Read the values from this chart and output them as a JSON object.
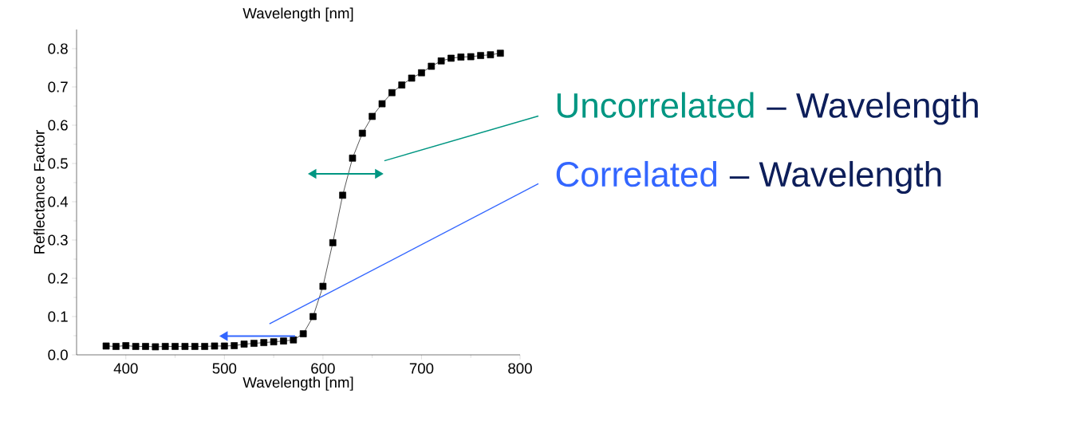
{
  "chart_data": {
    "type": "line",
    "title": "Wavelength [nm]",
    "xlabel": "Wavelength [nm]",
    "ylabel": "Reflectance Factor",
    "x": [
      380,
      390,
      400,
      410,
      420,
      430,
      440,
      450,
      460,
      470,
      480,
      490,
      500,
      510,
      520,
      530,
      540,
      550,
      560,
      570,
      580,
      590,
      600,
      610,
      620,
      630,
      640,
      650,
      660,
      670,
      680,
      690,
      700,
      710,
      720,
      730,
      740,
      750,
      760,
      770,
      780
    ],
    "values": [
      0.023,
      0.022,
      0.024,
      0.022,
      0.022,
      0.021,
      0.022,
      0.022,
      0.022,
      0.022,
      0.022,
      0.023,
      0.023,
      0.024,
      0.028,
      0.03,
      0.032,
      0.034,
      0.036,
      0.039,
      0.055,
      0.1,
      0.179,
      0.293,
      0.417,
      0.514,
      0.579,
      0.623,
      0.656,
      0.685,
      0.705,
      0.723,
      0.737,
      0.754,
      0.768,
      0.775,
      0.778,
      0.779,
      0.782,
      0.784,
      0.788
    ],
    "color": "#000000",
    "marker": "square",
    "line_style": "solid",
    "xlim": [
      350,
      800
    ],
    "xticks": [
      400,
      500,
      600,
      700,
      800
    ],
    "ylim": [
      0,
      0.85
    ],
    "yticks": [
      {
        "value": 0,
        "label": "0.0"
      },
      0.1,
      0.2,
      0.3,
      0.4,
      0.5,
      0.6,
      0.7,
      0.8
    ],
    "annotations": [
      "Uncorrelated",
      "– Wavelength",
      "Correlated",
      "– Wavelength"
    ]
  }
}
